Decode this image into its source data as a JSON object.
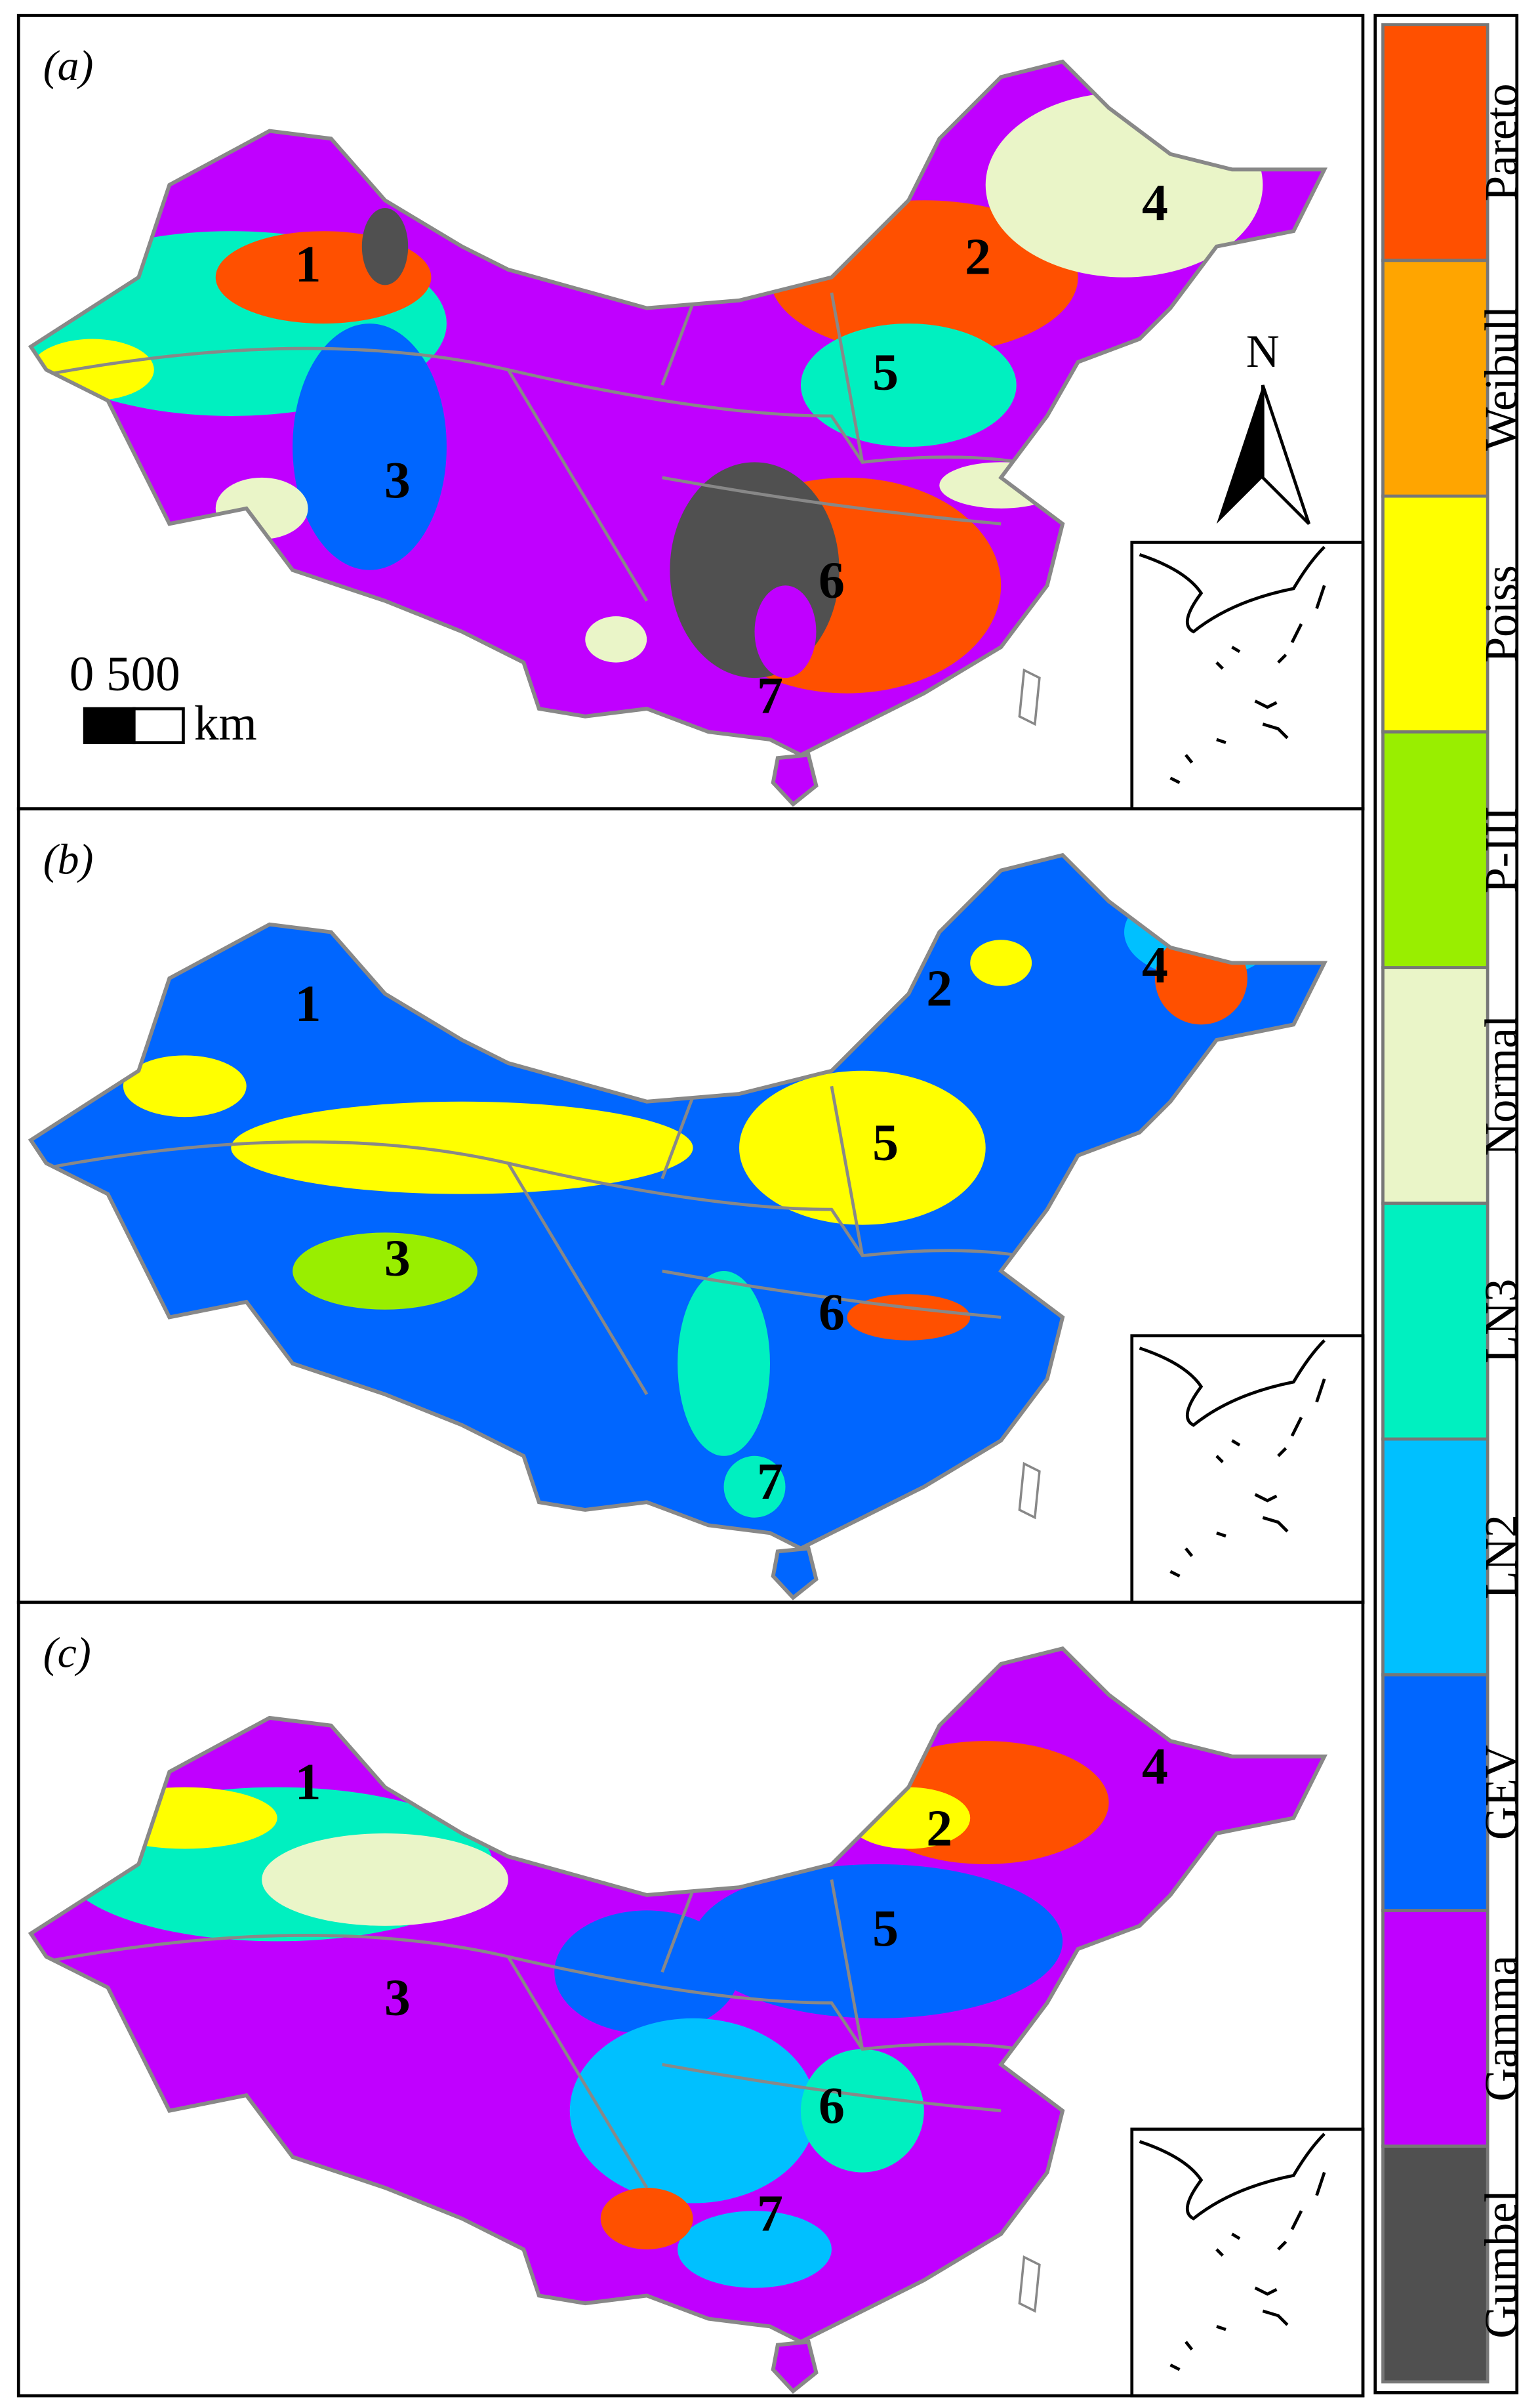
{
  "panels": [
    {
      "label": "(a)",
      "regions": [
        "1",
        "2",
        "3",
        "4",
        "5",
        "6",
        "7"
      ]
    },
    {
      "label": "(b)",
      "regions": [
        "1",
        "2",
        "3",
        "4",
        "5",
        "6",
        "7"
      ]
    },
    {
      "label": "(c)",
      "regions": [
        "1",
        "2",
        "3",
        "4",
        "5",
        "6",
        "7"
      ]
    }
  ],
  "scale_bar": {
    "ticks": "0 500",
    "unit": "km"
  },
  "north": "N",
  "legend": [
    {
      "name": "Gumbel",
      "color": "#505050"
    },
    {
      "name": "Gamma",
      "color": "#c000ff"
    },
    {
      "name": "GEV",
      "color": "#0066ff"
    },
    {
      "name": "LN2",
      "color": "#00c0ff"
    },
    {
      "name": "LN3",
      "color": "#00f0c0"
    },
    {
      "name": "Normal",
      "color": "#eaf5c8"
    },
    {
      "name": "P-III",
      "color": "#99ee00"
    },
    {
      "name": "Poiss",
      "color": "#ffff00"
    },
    {
      "name": "Weibull",
      "color": "#ffa500"
    },
    {
      "name": "Pareto",
      "color": "#ff5000"
    }
  ]
}
